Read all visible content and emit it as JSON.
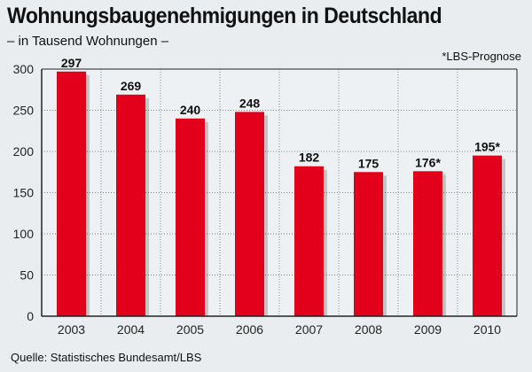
{
  "title": "Wohnungsbaugenehmigungen in Deutschland",
  "subtitle": "– in Tausend Wohnungen –",
  "note": "*LBS-Prognose",
  "source": "Quelle: Statistisches Bundesamt/LBS",
  "colors": {
    "bar": "#e2001a",
    "background": "#e9edf0"
  },
  "chart_data": {
    "type": "bar",
    "title": "Wohnungsbaugenehmigungen in Deutschland",
    "categories": [
      "2003",
      "2004",
      "2005",
      "2006",
      "2007",
      "2008",
      "2009",
      "2010"
    ],
    "values": [
      297,
      269,
      240,
      248,
      182,
      175,
      176,
      195
    ],
    "data_labels": [
      "297",
      "269",
      "240",
      "248",
      "182",
      "175",
      "176*",
      "195*"
    ],
    "ylim": [
      0,
      300
    ],
    "yticks": [
      0,
      50,
      100,
      150,
      200,
      250,
      300
    ],
    "grid": true
  }
}
